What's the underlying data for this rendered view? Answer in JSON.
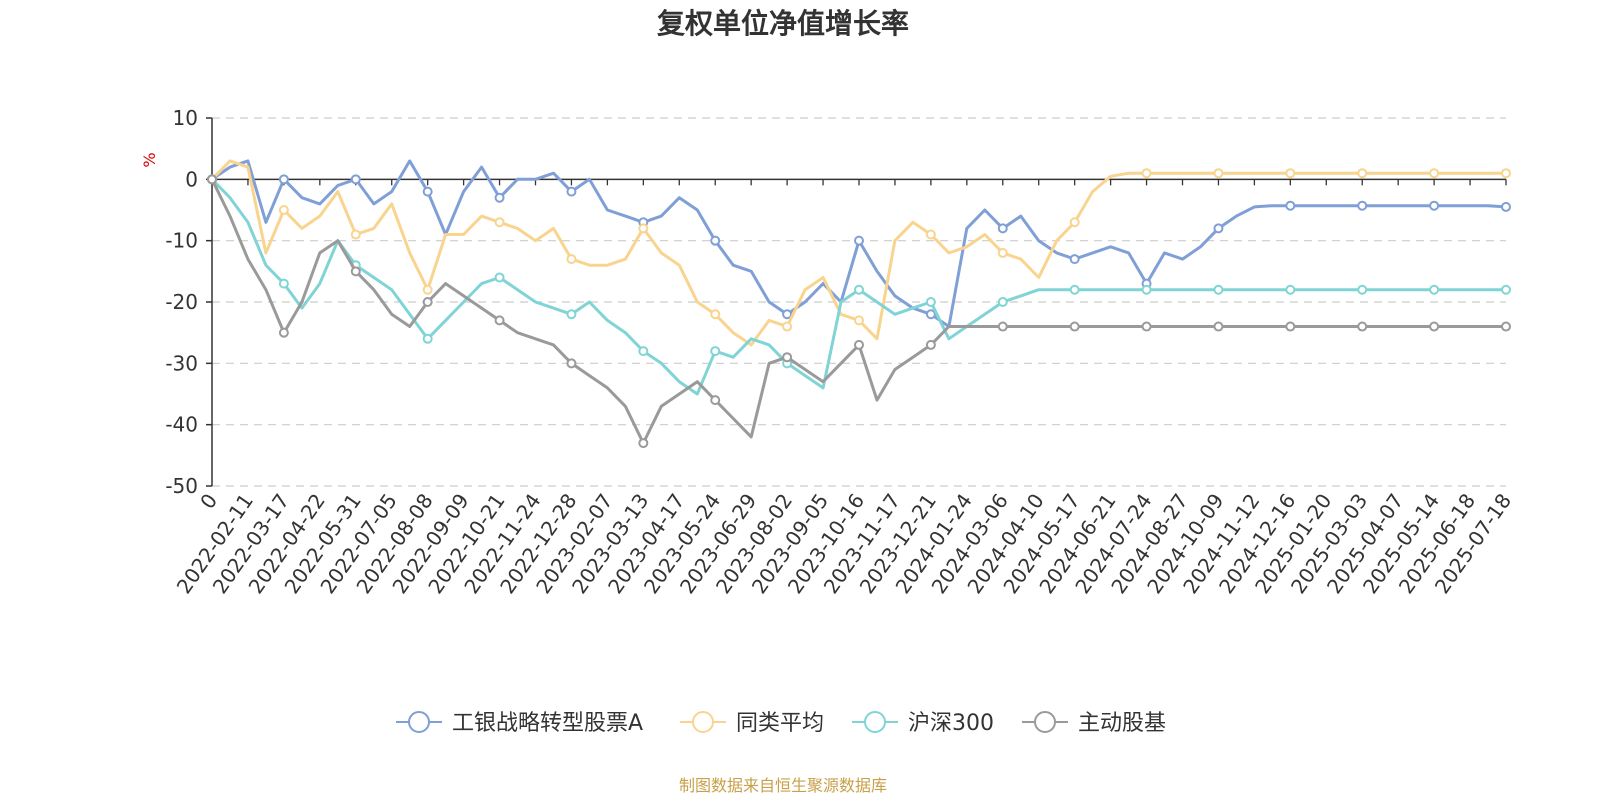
{
  "chart_data": {
    "type": "line",
    "title": "复权单位净值增长率",
    "ylabel": "%",
    "ylim": [
      -50,
      10
    ],
    "yticks": [
      10,
      0,
      -10,
      -20,
      -30,
      -40,
      -50
    ],
    "grid": true,
    "legend_position": "bottom",
    "x_tick_labels": [
      "0",
      "2022-02-11",
      "2022-03-17",
      "2022-04-22",
      "2022-05-31",
      "2022-07-05",
      "2022-08-08",
      "2022-09-09",
      "2022-10-21",
      "2022-11-24",
      "2022-12-28",
      "2023-02-07",
      "2023-03-13",
      "2023-04-17",
      "2023-05-24",
      "2023-06-29",
      "2023-08-02",
      "2023-09-05",
      "2023-10-16",
      "2023-11-17",
      "2023-12-21",
      "2024-01-24",
      "2024-03-06",
      "2024-04-10",
      "2024-05-17",
      "2024-06-21",
      "2024-07-24",
      "2024-08-27",
      "2024-10-09",
      "2024-11-12",
      "2024-12-16",
      "2025-01-20",
      "2025-03-03",
      "2025-04-07",
      "2025-05-14",
      "2025-06-18",
      "2025-07-18"
    ],
    "x": [
      0,
      0.5,
      1,
      1.5,
      2,
      2.5,
      3,
      3.5,
      4,
      4.5,
      5,
      5.5,
      6,
      6.5,
      7,
      7.5,
      8,
      8.5,
      9,
      9.5,
      10,
      10.5,
      11,
      11.5,
      12,
      12.5,
      13,
      13.5,
      14,
      14.5,
      15,
      15.5,
      16,
      16.5,
      17,
      17.5,
      18,
      18.5,
      19,
      19.5,
      20,
      20.5,
      21,
      21.5,
      22,
      22.5,
      23,
      23.5,
      24,
      24.5,
      25,
      25.5,
      26,
      26.5,
      27,
      27.5,
      28,
      28.5,
      29,
      29.5,
      30,
      30.5,
      31,
      31.5,
      32,
      32.5,
      33,
      33.5,
      34,
      34.5,
      35,
      35.5,
      36
    ],
    "series": [
      {
        "name": "工银战略转型股票A",
        "color": "#7f9fd6",
        "values": [
          0,
          2,
          3,
          -7,
          0,
          -3,
          -4,
          -1,
          0,
          -4,
          -2,
          3,
          -2,
          -9,
          -2,
          2,
          -3,
          0,
          0,
          1,
          -2,
          0,
          -5,
          -6,
          -7,
          -6,
          -3,
          -5,
          -10,
          -14,
          -15,
          -20,
          -22,
          -20,
          -17,
          -20,
          -10,
          -15,
          -19,
          -21,
          -22,
          -24,
          -8,
          -5,
          -8,
          -6,
          -10,
          -12,
          -13,
          -12,
          -11,
          -12,
          -17,
          -12,
          -13,
          -11,
          -8,
          -6,
          -4.5,
          -4.3,
          -4.3,
          -4.3,
          -4.3,
          -4.3,
          -4.3,
          -4.3,
          -4.3,
          -4.3,
          -4.3,
          -4.3,
          -4.3,
          -4.3,
          -4.5
        ]
      },
      {
        "name": "同类平均",
        "color": "#f9d48f",
        "values": [
          0,
          3,
          2,
          -12,
          -5,
          -8,
          -6,
          -2,
          -9,
          -8,
          -4,
          -12,
          -18,
          -9,
          -9,
          -6,
          -7,
          -8,
          -10,
          -8,
          -13,
          -14,
          -14,
          -13,
          -8,
          -12,
          -14,
          -20,
          -22,
          -25,
          -27,
          -23,
          -24,
          -18,
          -16,
          -22,
          -23,
          -26,
          -10,
          -7,
          -9,
          -12,
          -11,
          -9,
          -12,
          -13,
          -16,
          -10,
          -7,
          -2,
          0.5,
          1,
          1,
          1,
          1,
          1,
          1,
          1,
          1,
          1,
          1,
          1,
          1,
          1,
          1,
          1,
          1,
          1,
          1,
          1,
          1,
          1,
          1
        ]
      },
      {
        "name": "沪深300",
        "color": "#80d4d6",
        "values": [
          0,
          -3,
          -7,
          -14,
          -17,
          -21,
          -17,
          -10,
          -14,
          -16,
          -18,
          -22,
          -26,
          -23,
          -20,
          -17,
          -16,
          -18,
          -20,
          -21,
          -22,
          -20,
          -23,
          -25,
          -28,
          -30,
          -33,
          -35,
          -28,
          -29,
          -26,
          -27,
          -30,
          -32,
          -34,
          -20,
          -18,
          -20,
          -22,
          -21,
          -20,
          -26,
          -24,
          -22,
          -20,
          -19,
          -18,
          -18,
          -18,
          -18,
          -18,
          -18,
          -18,
          -18,
          -18,
          -18,
          -18,
          -18,
          -18,
          -18,
          -18,
          -18,
          -18,
          -18,
          -18,
          -18,
          -18,
          -18,
          -18,
          -18,
          -18,
          -18,
          -18
        ]
      },
      {
        "name": "主动股基",
        "color": "#9a9a9a",
        "values": [
          0,
          -6,
          -13,
          -18,
          -25,
          -20,
          -12,
          -10,
          -15,
          -18,
          -22,
          -24,
          -20,
          -17,
          -19,
          -21,
          -23,
          -25,
          -26,
          -27,
          -30,
          -32,
          -34,
          -37,
          -43,
          -37,
          -35,
          -33,
          -36,
          -39,
          -42,
          -30,
          -29,
          -31,
          -33,
          -30,
          -27,
          -36,
          -31,
          -29,
          -27,
          -24,
          -24,
          -24,
          -24,
          -24,
          -24,
          -24,
          -24,
          -24,
          -24,
          -24,
          -24,
          -24,
          -24,
          -24,
          -24,
          -24,
          -24,
          -24,
          -24,
          -24,
          -24,
          -24,
          -24,
          -24,
          -24,
          -24,
          -24,
          -24,
          -24,
          -24,
          -24
        ]
      }
    ]
  },
  "footer": {
    "source": "制图数据来自恒生聚源数据库"
  }
}
